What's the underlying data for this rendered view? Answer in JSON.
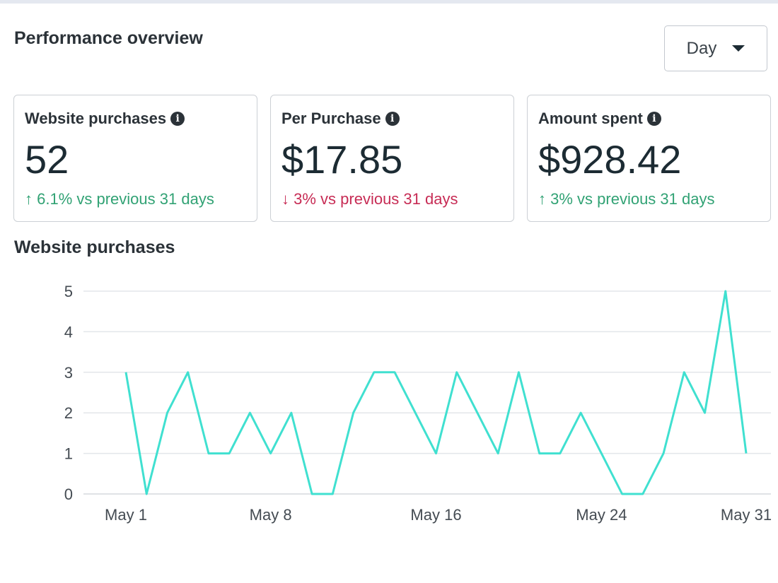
{
  "header": {
    "title": "Performance overview",
    "granularity": "Day"
  },
  "cards": [
    {
      "label": "Website purchases",
      "value": "52",
      "direction": "up",
      "arrow": "↑",
      "delta": "6.1% vs previous 31 days"
    },
    {
      "label": "Per Purchase",
      "value": "$17.85",
      "direction": "down",
      "arrow": "↓",
      "delta": "3% vs previous 31 days"
    },
    {
      "label": "Amount spent",
      "value": "$928.42",
      "direction": "up",
      "arrow": "↑",
      "delta": "3% vs previous 31 days"
    }
  ],
  "colors": {
    "line": "#40e0d0",
    "up": "#31a274",
    "down": "#c72c55",
    "grid": "#e3e6ea"
  },
  "chart_data": {
    "type": "line",
    "title": "Website purchases",
    "x": [
      "May 1",
      "May 2",
      "May 3",
      "May 4",
      "May 5",
      "May 6",
      "May 7",
      "May 8",
      "May 9",
      "May 10",
      "May 11",
      "May 12",
      "May 13",
      "May 14",
      "May 15",
      "May 16",
      "May 17",
      "May 18",
      "May 19",
      "May 20",
      "May 21",
      "May 22",
      "May 23",
      "May 24",
      "May 25",
      "May 26",
      "May 27",
      "May 28",
      "May 29",
      "May 30",
      "May 31"
    ],
    "values": [
      3,
      0,
      2,
      3,
      1,
      1,
      2,
      1,
      2,
      0,
      0,
      2,
      3,
      3,
      2,
      1,
      3,
      2,
      1,
      3,
      1,
      1,
      2,
      1,
      0,
      0,
      1,
      3,
      2,
      5,
      1
    ],
    "x_ticks": [
      "May 1",
      "May 8",
      "May 16",
      "May 24",
      "May 31"
    ],
    "y_ticks": [
      0,
      1,
      2,
      3,
      4,
      5
    ],
    "ylim": [
      0,
      5
    ],
    "grid": true
  }
}
